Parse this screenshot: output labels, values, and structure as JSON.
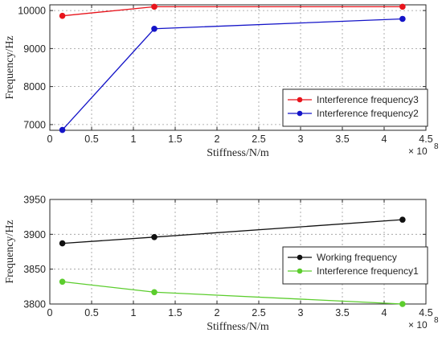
{
  "chart_data": [
    {
      "type": "line",
      "xlabel": "Stiffness/N/m",
      "ylabel": "Frequency/Hz",
      "x_exponent_base": "× 10",
      "x_exponent_power": "8",
      "xlim": [
        0,
        4.5
      ],
      "ylim": [
        6850,
        10150
      ],
      "xticks": [
        0,
        0.5,
        1,
        1.5,
        2,
        2.5,
        3,
        3.5,
        4,
        4.5
      ],
      "yticks": [
        7000,
        8000,
        9000,
        10000
      ],
      "grid": true,
      "legend_position": "bottom-right",
      "series": [
        {
          "name": "Interference frequency3",
          "color": "#e8141c",
          "x": [
            0.15,
            1.25,
            4.22
          ],
          "y": [
            9860,
            10100,
            10100
          ]
        },
        {
          "name": "Interference frequency2",
          "color": "#1414c8",
          "x": [
            0.15,
            1.25,
            4.22
          ],
          "y": [
            6860,
            9520,
            9780
          ]
        }
      ]
    },
    {
      "type": "line",
      "xlabel": "Stiffness/N/m",
      "ylabel": "Frequency/Hz",
      "x_exponent_base": "× 10",
      "x_exponent_power": "8",
      "xlim": [
        0,
        4.5
      ],
      "ylim": [
        3800,
        3950
      ],
      "xticks": [
        0,
        0.5,
        1,
        1.5,
        2,
        2.5,
        3,
        3.5,
        4,
        4.5
      ],
      "yticks": [
        3800,
        3850,
        3900,
        3950
      ],
      "grid": true,
      "legend_position": "bottom-right",
      "series": [
        {
          "name": "Working frequency",
          "color": "#111111",
          "x": [
            0.15,
            1.25,
            4.22
          ],
          "y": [
            3887,
            3896,
            3921
          ]
        },
        {
          "name": "Interference frequency1",
          "color": "#5ccd2e",
          "x": [
            0.15,
            1.25,
            4.22
          ],
          "y": [
            3832,
            3817,
            3800
          ]
        }
      ]
    }
  ]
}
